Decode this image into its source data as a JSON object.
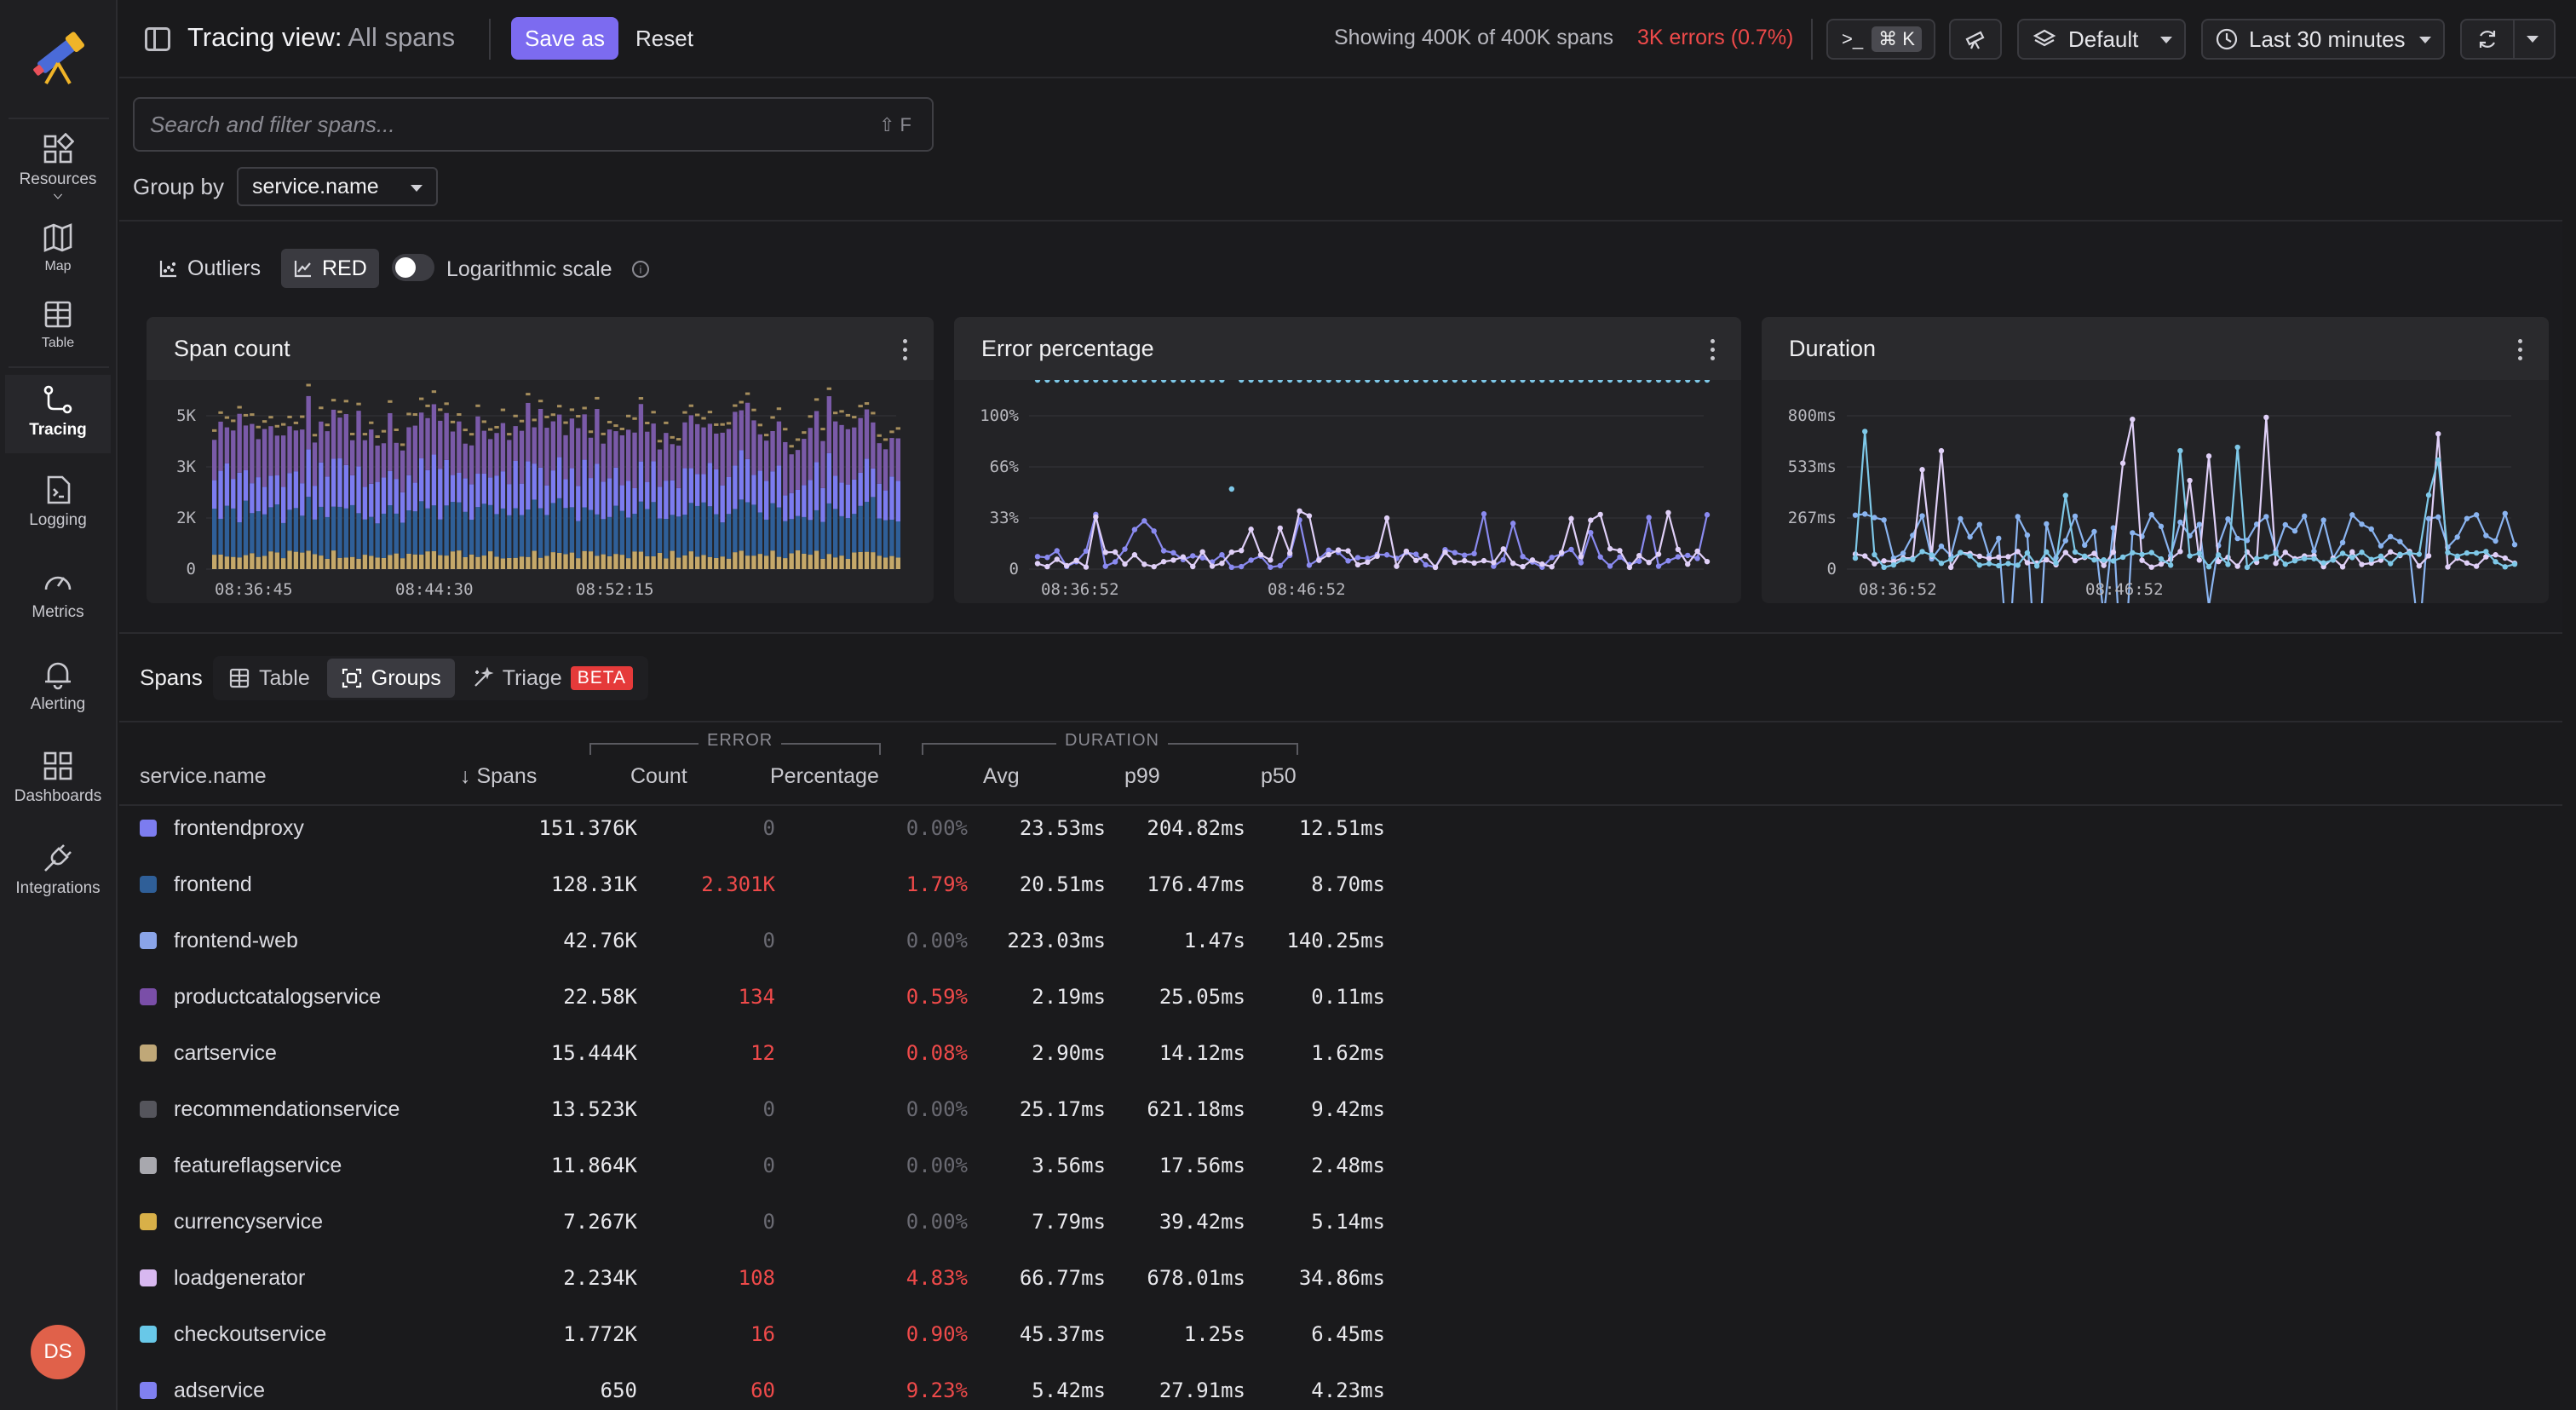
{
  "sidebar": {
    "items": [
      {
        "label": "Resources",
        "icon": "resources-icon"
      },
      {
        "label": "Map",
        "icon": "map-icon"
      },
      {
        "label": "Table",
        "icon": "table-icon"
      },
      {
        "label": "Tracing",
        "icon": "tracing-icon"
      },
      {
        "label": "Logging",
        "icon": "logging-icon"
      },
      {
        "label": "Metrics",
        "icon": "metrics-icon"
      },
      {
        "label": "Alerting",
        "icon": "alerting-icon"
      },
      {
        "label": "Dashboards",
        "icon": "dashboards-icon"
      },
      {
        "label": "Integrations",
        "icon": "integrations-icon"
      }
    ],
    "avatar": "DS"
  },
  "header": {
    "title": "Tracing view:",
    "subtitle": "All spans",
    "save_as": "Save as",
    "reset": "Reset",
    "showing": "Showing 400K of 400K spans",
    "errors": "3K errors (0.7%)",
    "cmd_symbol": ">_",
    "cmd_kbd": "⌘ K",
    "layer": "Default",
    "time_range": "Last 30 minutes"
  },
  "search": {
    "placeholder": "Search and filter spans...",
    "hint": "⇧ F"
  },
  "group_by": {
    "label": "Group by",
    "value": "service.name"
  },
  "chart_controls": {
    "outliers": "Outliers",
    "red": "RED",
    "log_scale": "Logarithmic scale",
    "log_scale_on": false
  },
  "chart_data": [
    {
      "type": "bar",
      "title": "Span count",
      "y_ticks": [
        "5K",
        "3K",
        "2K",
        "0"
      ],
      "x_ticks": [
        "08:36:45",
        "08:44:30",
        "08:52:15"
      ],
      "stacked": true,
      "colors": [
        "#7c7cf0",
        "#2f5f98",
        "#c5a86a",
        "#7a5aa8"
      ]
    },
    {
      "type": "line",
      "title": "Error percentage",
      "y_ticks": [
        "100%",
        "66%",
        "33%",
        "0"
      ],
      "x_ticks": [
        "08:36:52",
        "08:46:52"
      ],
      "colors": [
        "#8a8af0",
        "#e0d0f8",
        "#7ec8e8"
      ]
    },
    {
      "type": "line",
      "title": "Duration",
      "y_ticks": [
        "800ms",
        "533ms",
        "267ms",
        "0"
      ],
      "x_ticks": [
        "08:36:52",
        "08:46:52"
      ],
      "colors": [
        "#8ab4f0",
        "#e0d0f8",
        "#7ec8e8"
      ]
    }
  ],
  "spans": {
    "label": "Spans",
    "tabs": [
      "Table",
      "Groups",
      "Triage"
    ],
    "beta": "BETA",
    "group_error": "ERROR",
    "group_duration": "DURATION",
    "columns": [
      "service.name",
      "Spans",
      "Count",
      "Percentage",
      "Avg",
      "p99",
      "p50"
    ],
    "sort_arrow": "↓",
    "rows": [
      {
        "name": "frontendproxy",
        "color": "#7c7cf0",
        "spans": "151.376K",
        "count": "0",
        "pct": "0.00%",
        "avg": "23.53ms",
        "p99": "204.82ms",
        "p50": "12.51ms"
      },
      {
        "name": "frontend",
        "color": "#2f5f98",
        "spans": "128.31K",
        "count": "2.301K",
        "pct": "1.79%",
        "avg": "20.51ms",
        "p99": "176.47ms",
        "p50": "8.70ms"
      },
      {
        "name": "frontend-web",
        "color": "#8aa4e8",
        "spans": "42.76K",
        "count": "0",
        "pct": "0.00%",
        "avg": "223.03ms",
        "p99": "1.47s",
        "p50": "140.25ms"
      },
      {
        "name": "productcatalogservice",
        "color": "#7a4ea8",
        "spans": "22.58K",
        "count": "134",
        "pct": "0.59%",
        "avg": "2.19ms",
        "p99": "25.05ms",
        "p50": "0.11ms"
      },
      {
        "name": "cartservice",
        "color": "#c0a878",
        "spans": "15.444K",
        "count": "12",
        "pct": "0.08%",
        "avg": "2.90ms",
        "p99": "14.12ms",
        "p50": "1.62ms"
      },
      {
        "name": "recommendationservice",
        "color": "#55555c",
        "spans": "13.523K",
        "count": "0",
        "pct": "0.00%",
        "avg": "25.17ms",
        "p99": "621.18ms",
        "p50": "9.42ms"
      },
      {
        "name": "featureflagservice",
        "color": "#a8a8ae",
        "spans": "11.864K",
        "count": "0",
        "pct": "0.00%",
        "avg": "3.56ms",
        "p99": "17.56ms",
        "p50": "2.48ms"
      },
      {
        "name": "currencyservice",
        "color": "#d8b048",
        "spans": "7.267K",
        "count": "0",
        "pct": "0.00%",
        "avg": "7.79ms",
        "p99": "39.42ms",
        "p50": "5.14ms"
      },
      {
        "name": "loadgenerator",
        "color": "#d8b8f0",
        "spans": "2.234K",
        "count": "108",
        "pct": "4.83%",
        "avg": "66.77ms",
        "p99": "678.01ms",
        "p50": "34.86ms"
      },
      {
        "name": "checkoutservice",
        "color": "#68c8e8",
        "spans": "1.772K",
        "count": "16",
        "pct": "0.90%",
        "avg": "45.37ms",
        "p99": "1.25s",
        "p50": "6.45ms"
      },
      {
        "name": "adservice",
        "color": "#8080f0",
        "spans": "650",
        "count": "60",
        "pct": "9.23%",
        "avg": "5.42ms",
        "p99": "27.91ms",
        "p50": "4.23ms"
      }
    ]
  }
}
